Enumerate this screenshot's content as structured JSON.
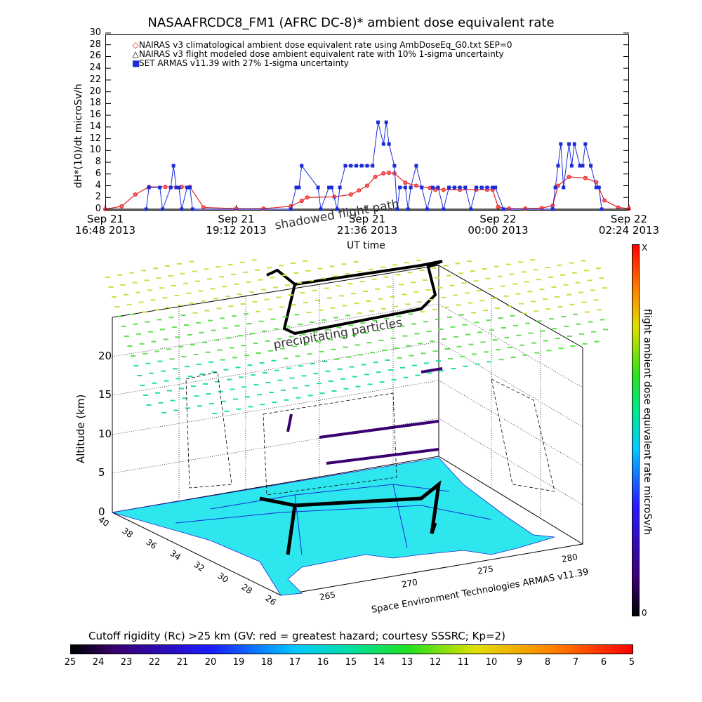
{
  "title": "NASAAFRCDC8_FM1 (AFRC DC-8)* ambient dose equivalent rate",
  "chart_data": [
    {
      "type": "line",
      "ylabel": "dH*(10)/dt microSv/h",
      "xlabel": "UT time",
      "ylim": [
        0,
        30
      ],
      "yticks": [
        "0",
        "2",
        "4",
        "6",
        "8",
        "10",
        "12",
        "14",
        "16",
        "18",
        "20",
        "22",
        "24",
        "26",
        "28",
        "30"
      ],
      "xticks": [
        {
          "line1": "Sep 21",
          "line2": "16:48 2013"
        },
        {
          "line1": "Sep 21",
          "line2": "19:12 2013"
        },
        {
          "line1": "Sep 21",
          "line2": "21:36 2013"
        },
        {
          "line1": "Sep 22",
          "line2": "00:00 2013"
        },
        {
          "line1": "Sep 22",
          "line2": "02:24 2013"
        }
      ],
      "xlim_hours": [
        16.8,
        26.4
      ],
      "legend": [
        {
          "marker": "◇",
          "color": "#e02020",
          "text": "NAIRAS v3 climatological ambient dose equivalent rate using AmbDoseEq_G0.txt SEP=0"
        },
        {
          "marker": "△",
          "color": "#000000",
          "text": "NAIRAS v3 flight modeled dose ambient equivalent rate with 10% 1-sigma uncertainty"
        },
        {
          "marker": "■",
          "color": "#1a2bd8",
          "text": "SET ARMAS v11.39 with 27% 1-sigma uncertainty"
        }
      ],
      "series": [
        {
          "name": "NAIRAS v3 climatological ambient dose equivalent rate using AmbDoseEq_G0.txt SEP=0",
          "color": "#e02020",
          "x": [
            16.8,
            17.1,
            17.35,
            17.6,
            17.9,
            18.2,
            18.35,
            18.6,
            19.2,
            19.7,
            20.2,
            20.4,
            20.5,
            21.0,
            21.3,
            21.45,
            21.6,
            21.75,
            21.9,
            22.0,
            22.1,
            22.3,
            22.5,
            22.75,
            22.85,
            23.0,
            23.3,
            23.6,
            23.8,
            23.9,
            24.0,
            24.2,
            24.5,
            24.8,
            25.0,
            25.1,
            25.3,
            25.6,
            25.8,
            25.95,
            26.2,
            26.4
          ],
          "y": [
            0,
            0.5,
            2.5,
            3.8,
            3.8,
            3.8,
            3.8,
            0.3,
            0.1,
            0.1,
            0.5,
            1.4,
            2.0,
            2.1,
            2.5,
            3.2,
            4.0,
            5.5,
            6.1,
            6.2,
            6.1,
            4.5,
            4.0,
            3.6,
            3.3,
            3.3,
            3.3,
            3.3,
            3.3,
            3.3,
            0.4,
            0.1,
            0.1,
            0.2,
            0.6,
            4.0,
            5.5,
            5.3,
            4.6,
            1.5,
            0.3,
            0.1
          ]
        },
        {
          "name": "NAIRAS v3 flight modeled dose ambient equivalent rate with 10% 1-sigma uncertainty",
          "color": "#000000",
          "x": [
            16.8,
            26.4
          ],
          "y": [
            0,
            0
          ]
        },
        {
          "name": "SET ARMAS v11.39 with 27% 1-sigma uncertainty",
          "color": "#1a2bd8",
          "x": [
            17.55,
            17.6,
            17.8,
            17.85,
            18.0,
            18.05,
            18.1,
            18.15,
            18.2,
            18.3,
            18.35,
            18.4,
            20.2,
            20.3,
            20.35,
            20.4,
            20.7,
            20.75,
            20.9,
            20.95,
            21.05,
            21.1,
            21.2,
            21.3,
            21.4,
            21.5,
            21.6,
            21.7,
            21.8,
            21.9,
            21.95,
            22.0,
            22.1,
            22.15,
            22.2,
            22.3,
            22.35,
            22.4,
            22.5,
            22.6,
            22.7,
            22.8,
            22.9,
            23.0,
            23.1,
            23.2,
            23.3,
            23.4,
            23.5,
            23.6,
            23.7,
            23.8,
            23.9,
            23.95,
            24.1,
            25.0,
            25.05,
            25.1,
            25.15,
            25.2,
            25.3,
            25.35,
            25.4,
            25.5,
            25.55,
            25.6,
            25.7,
            25.8,
            25.85,
            25.9
          ],
          "y": [
            0,
            3.7,
            3.7,
            0,
            3.7,
            7.4,
            3.7,
            3.7,
            0,
            3.7,
            3.7,
            0,
            0,
            3.7,
            3.7,
            7.4,
            3.7,
            0,
            3.7,
            3.7,
            0,
            3.7,
            7.4,
            7.4,
            7.4,
            7.4,
            7.4,
            7.4,
            14.8,
            11.1,
            14.8,
            11.1,
            7.4,
            0,
            3.7,
            3.7,
            0,
            3.7,
            7.4,
            3.7,
            0,
            3.7,
            3.7,
            0,
            3.7,
            3.7,
            3.7,
            3.7,
            0,
            3.7,
            3.7,
            3.7,
            3.7,
            3.7,
            0,
            0,
            3.7,
            7.4,
            11.1,
            3.7,
            11.1,
            7.4,
            11.1,
            7.4,
            7.4,
            11.1,
            7.4,
            3.7,
            3.7,
            0
          ]
        }
      ]
    },
    {
      "type": "3d-flight-path",
      "zlabel": "Altitude (km)",
      "zticks": [
        "0",
        "5",
        "10",
        "15",
        "20"
      ],
      "lat_ticks": [
        "40",
        "38",
        "36",
        "34",
        "32",
        "30",
        "28",
        "26"
      ],
      "lon_ticks": [
        "265",
        "270",
        "275",
        "280"
      ],
      "annotations": [
        "shadowed flight path",
        "precipitating particles"
      ],
      "caption": "Space Environment Technologies ARMAS v11.39",
      "colorbar_label": "flight ambient dose equivalent rate microSv/h",
      "colorbar_max": "X",
      "colorbar_min": "0"
    }
  ],
  "cutoff": {
    "label": "Cutoff rigidity (Rc) >25 km (GV: red = greatest hazard; courtesy SSSRC; Kp=2)",
    "ticks": [
      "25",
      "24",
      "23",
      "22",
      "21",
      "20",
      "19",
      "18",
      "17",
      "16",
      "15",
      "14",
      "13",
      "12",
      "11",
      "10",
      "9",
      "8",
      "7",
      "6",
      "5"
    ]
  }
}
